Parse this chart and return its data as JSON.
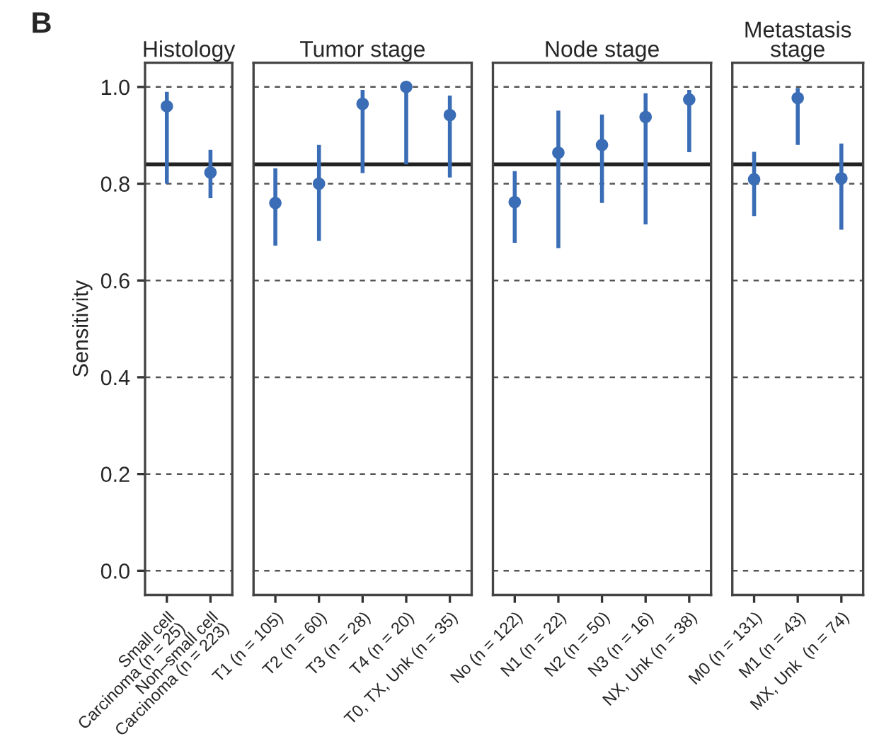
{
  "chart_data": [
    {
      "type": "scatter",
      "title": "Histology",
      "ylabel": "Sensitivity",
      "annotations": [
        "B"
      ],
      "categories": [
        "Small cell\nCarcinoma (n = 25)",
        "Non–small cell\nCarcinoma (n = 223)"
      ],
      "values": [
        0.96,
        0.823
      ],
      "errors": [
        [
          0.8,
          0.99
        ],
        [
          0.77,
          0.87
        ]
      ],
      "color": "#3a6db5",
      "marker": "circle",
      "ylim": [
        -0.05,
        1.05
      ],
      "yticks": [
        {
          "value": 0,
          "label": "0.0"
        },
        0.2,
        0.4,
        0.6,
        0.8,
        {
          "value": 1,
          "label": "1.0"
        }
      ],
      "grid": "y",
      "ref_lines": [
        {
          "axis": "y",
          "value": 0.84,
          "color": "#222222"
        }
      ]
    },
    {
      "type": "scatter",
      "title": "Tumor stage",
      "categories": [
        "T1 (n = 105)",
        "T2 (n = 60)",
        "T3 (n = 28)",
        "T4 (n = 20)",
        "T0, TX, Unk (n = 35)"
      ],
      "values": [
        0.76,
        0.8,
        0.965,
        1.0,
        0.942
      ],
      "errors": [
        [
          0.672,
          0.832
        ],
        [
          0.682,
          0.88
        ],
        [
          0.822,
          0.994
        ],
        [
          0.84,
          1.0
        ],
        [
          0.813,
          0.982
        ]
      ],
      "color": "#3a6db5",
      "marker": "circle",
      "ylim": [
        -0.05,
        1.05
      ],
      "yticks": [
        0,
        0.2,
        0.4,
        0.6,
        0.8,
        1
      ],
      "tick_labels": "x",
      "grid": "y",
      "ref_lines": [
        {
          "axis": "y",
          "value": 0.84,
          "color": "#222222"
        }
      ]
    },
    {
      "type": "scatter",
      "title": "Node stage",
      "categories": [
        "No (n = 122)",
        "N1 (n = 22)",
        "N2 (n = 50)",
        "N3 (n = 16)",
        "NX, Unk (n = 38)"
      ],
      "values": [
        0.762,
        0.864,
        0.88,
        0.938,
        0.974
      ],
      "errors": [
        [
          0.678,
          0.826
        ],
        [
          0.667,
          0.951
        ],
        [
          0.76,
          0.943
        ],
        [
          0.716,
          0.987
        ],
        [
          0.865,
          0.994
        ]
      ],
      "color": "#3a6db5",
      "marker": "circle",
      "ylim": [
        -0.05,
        1.05
      ],
      "yticks": [
        0,
        0.2,
        0.4,
        0.6,
        0.8,
        1
      ],
      "tick_labels": "x",
      "grid": "y",
      "ref_lines": [
        {
          "axis": "y",
          "value": 0.84,
          "color": "#222222"
        }
      ]
    },
    {
      "type": "scatter",
      "title": "Metastasis\nstage",
      "categories": [
        "M0 (n = 131)",
        "M1 (n = 43)",
        "MX, Unk  (n = 74)"
      ],
      "values": [
        0.809,
        0.977,
        0.811
      ],
      "errors": [
        [
          0.733,
          0.866
        ],
        [
          0.88,
          0.998
        ],
        [
          0.705,
          0.883
        ]
      ],
      "color": "#3a6db5",
      "marker": "circle",
      "ylim": [
        -0.05,
        1.05
      ],
      "yticks": [
        0,
        0.2,
        0.4,
        0.6,
        0.8,
        1
      ],
      "tick_labels": "x",
      "grid": "y",
      "ref_lines": [
        {
          "axis": "y",
          "value": 0.84,
          "color": "#222222"
        }
      ]
    }
  ]
}
